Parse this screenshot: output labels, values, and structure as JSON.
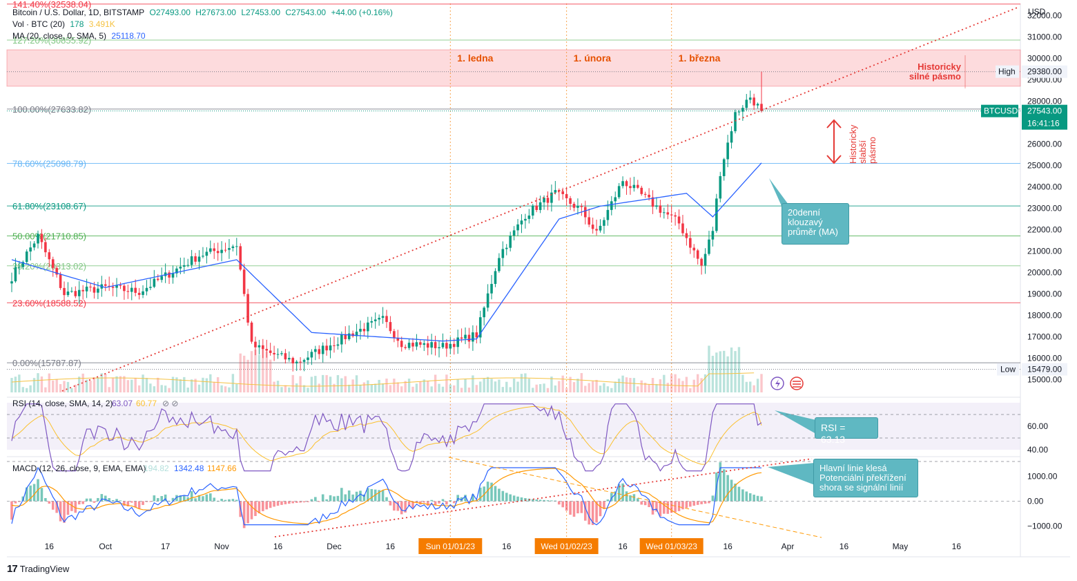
{
  "header": {
    "symbol_line": {
      "name": "Bitcoin / U.S. Dollar, 1D, BITSTAMP",
      "open": "O27493.00",
      "high": "H27673.00",
      "low": "L27453.00",
      "close": "C27543.00",
      "change": "+44.00 (+0.16%)"
    },
    "vol_line": {
      "name": "Vol · BTC (20)",
      "v1": "178",
      "v2": "3.491K"
    },
    "ma_line": {
      "name": "MA (20, close, 0, SMA, 5)",
      "v1": "25118.70"
    }
  },
  "fib_labels": [
    {
      "text": "141.40%(32538.04)",
      "value": 32538.04,
      "color": "#f23645"
    },
    {
      "text": "127.20%(30855.92)",
      "value": 30855.92,
      "color": "#81c784"
    },
    {
      "text": "100.00%(27633.82)",
      "value": 27633.82,
      "color": "#787b86"
    },
    {
      "text": "78.60%(25098.79)",
      "value": 25098.79,
      "color": "#64b5f6"
    },
    {
      "text": "61.80%(23108.67)",
      "value": 23108.67,
      "color": "#089981"
    },
    {
      "text": "50.00%(21710.85)",
      "value": 21710.85,
      "color": "#4caf50"
    },
    {
      "text": "38.20%(20313.02)",
      "value": 20313.02,
      "color": "#81c784"
    },
    {
      "text": "23.60%(18588.52)",
      "value": 18588.52,
      "color": "#f23645"
    },
    {
      "text": "0.00%(15787.87)",
      "value": 15787.87,
      "color": "#787b86"
    }
  ],
  "month_labels": [
    "1. ledna",
    "1. února",
    "1. března"
  ],
  "zone_label": {
    "line1": "Historicky",
    "line2": "silné pásmo"
  },
  "weak_zone_label": {
    "line1": "Historicky",
    "line2": "slabší",
    "line3": "pásmo"
  },
  "price_axis": {
    "currency": "USD",
    "ticks": [
      "32000.00",
      "31000.00",
      "30000.00",
      "29000.00",
      "28000.00",
      "27000.00",
      "26000.00",
      "25000.00",
      "24000.00",
      "23000.00",
      "22000.00",
      "21000.00",
      "20000.00",
      "19000.00",
      "18000.00",
      "17000.00",
      "16000.00",
      "15000.00"
    ],
    "high_label": "High",
    "high_value": "29380.00",
    "low_label": "Low",
    "low_value": "15479.00",
    "symbol_tag": "BTCUSD",
    "last_price": "27543.00",
    "countdown": "16:41:16"
  },
  "rsi": {
    "title": "RSI (14, close, SMA, 14, 2)",
    "v1": "63.07",
    "v2": "60.77",
    "ticks": [
      "60.00",
      "40.00"
    ],
    "callout": "RSI = 63.13"
  },
  "macd": {
    "title": "MACD (12, 26, close, 9, EMA, EMA)",
    "hist": "194.82",
    "macd": "1342.48",
    "signal": "1147.66",
    "ticks": [
      "1000.00",
      "0.00",
      "−1000.00"
    ],
    "callout": {
      "line1": "Hlavní linie klesá",
      "line2": "Potenciální překřížení",
      "line3": "shora se signální linií"
    }
  },
  "ma_callout": {
    "line1": "20denní",
    "line2": "klouzavý",
    "line3": "průměr (MA)"
  },
  "time_axis": {
    "ticks": [
      "16",
      "Oct",
      "17",
      "Nov",
      "16",
      "Dec",
      "16",
      "16",
      "16",
      "16",
      "Apr",
      "16",
      "May",
      "16"
    ],
    "highlights": [
      "Sun 01/01/23",
      "Wed 01/02/23",
      "Wed 01/03/23"
    ]
  },
  "footer": {
    "brand": "TradingView"
  },
  "colors": {
    "up": "#089981",
    "down": "#f23645",
    "ma": "#2962ff",
    "rsi": "#7e57c2",
    "rsi_ma": "#fbc02d",
    "macd": "#2962ff",
    "signal": "#ff9800",
    "callout": "#5fb8c2",
    "date_highlight": "#f57c00",
    "strong_zone": "#f23645"
  },
  "chart_data": {
    "type": "candlestick",
    "symbol": "BTCUSD",
    "interval": "1D",
    "ohlc_last": {
      "open": 27493.0,
      "high": 27673.0,
      "low": 27453.0,
      "close": 27543.0
    },
    "price_range": [
      14700,
      32400
    ],
    "anchors": [
      {
        "date": "2022-09-06",
        "close": 19800
      },
      {
        "date": "2022-09-13",
        "close": 21700
      },
      {
        "date": "2022-09-20",
        "close": 19000
      },
      {
        "date": "2022-10-01",
        "close": 19300
      },
      {
        "date": "2022-10-10",
        "close": 19100
      },
      {
        "date": "2022-10-26",
        "close": 20800
      },
      {
        "date": "2022-11-05",
        "close": 21300
      },
      {
        "date": "2022-11-09",
        "close": 16600
      },
      {
        "date": "2022-11-13",
        "close": 16300
      },
      {
        "date": "2022-11-21",
        "close": 15800
      },
      {
        "date": "2022-12-05",
        "close": 17100
      },
      {
        "date": "2022-12-14",
        "close": 17800
      },
      {
        "date": "2022-12-19",
        "close": 16700
      },
      {
        "date": "2022-12-30",
        "close": 16550
      },
      {
        "date": "2023-01-08",
        "close": 17100
      },
      {
        "date": "2023-01-14",
        "close": 20800
      },
      {
        "date": "2023-01-21",
        "close": 22700
      },
      {
        "date": "2023-01-29",
        "close": 23700
      },
      {
        "date": "2023-02-05",
        "close": 22900
      },
      {
        "date": "2023-02-09",
        "close": 21800
      },
      {
        "date": "2023-02-16",
        "close": 24300
      },
      {
        "date": "2023-02-24",
        "close": 23200
      },
      {
        "date": "2023-03-03",
        "close": 22300
      },
      {
        "date": "2023-03-09",
        "close": 20300
      },
      {
        "date": "2023-03-12",
        "close": 22000
      },
      {
        "date": "2023-03-14",
        "close": 24700
      },
      {
        "date": "2023-03-18",
        "close": 27400
      },
      {
        "date": "2023-03-22",
        "close": 28200
      },
      {
        "date": "2023-03-25",
        "close": 27543
      }
    ],
    "moving_average_20": [
      {
        "date": "2022-09-06",
        "value": 20600
      },
      {
        "date": "2022-10-01",
        "value": 19300
      },
      {
        "date": "2022-11-05",
        "value": 20600
      },
      {
        "date": "2022-11-25",
        "value": 17200
      },
      {
        "date": "2022-12-30",
        "value": 16800
      },
      {
        "date": "2023-01-08",
        "value": 16900
      },
      {
        "date": "2023-01-30",
        "value": 22500
      },
      {
        "date": "2023-02-10",
        "value": 23100
      },
      {
        "date": "2023-03-05",
        "value": 23700
      },
      {
        "date": "2023-03-12",
        "value": 22600
      },
      {
        "date": "2023-03-25",
        "value": 25118.7
      }
    ],
    "fibonacci_levels": [
      {
        "ratio": 1.414,
        "price": 32538.04
      },
      {
        "ratio": 1.272,
        "price": 30855.92
      },
      {
        "ratio": 1.0,
        "price": 27633.82
      },
      {
        "ratio": 0.786,
        "price": 25098.79
      },
      {
        "ratio": 0.618,
        "price": 23108.67
      },
      {
        "ratio": 0.5,
        "price": 21710.85
      },
      {
        "ratio": 0.382,
        "price": 20313.02
      },
      {
        "ratio": 0.236,
        "price": 18588.52
      },
      {
        "ratio": 0.0,
        "price": 15787.87
      }
    ],
    "strong_zone": [
      28700,
      30400
    ],
    "period_high": 29380.0,
    "period_low": 15479.0,
    "rsi_last": {
      "rsi": 63.07,
      "ma": 60.77
    },
    "rsi_range": [
      20,
      80
    ],
    "macd_last": {
      "histogram": 194.82,
      "macd": 1342.48,
      "signal": 1147.66
    },
    "macd_range": [
      -1400,
      1450
    ]
  }
}
